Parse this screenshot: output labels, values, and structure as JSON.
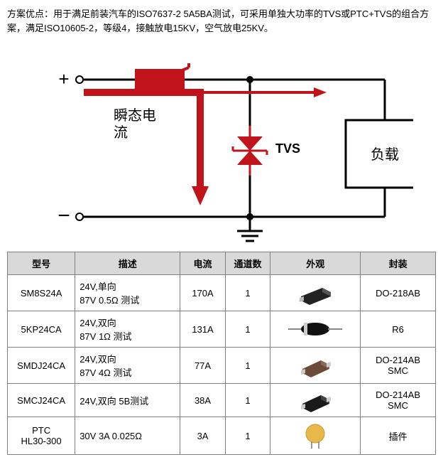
{
  "description": "方案优点：用于满足前装汽车的ISO7637-2 5A5BA测试，可采用单独大功率的TVS或PTC+TVS的组合方案，满足ISO10605-2，等级4，接触放电15KV，空气放电25KV。",
  "diagram": {
    "plus": "+",
    "minus": "−",
    "transient_label": "瞬态电\n流",
    "tvs_label": "TVS",
    "load_label": "负载",
    "line_color": "#000000",
    "red_color": "#c0131a",
    "line_width": 3,
    "red_width": 10
  },
  "table": {
    "headers": [
      "型号",
      "描述",
      "电流",
      "通道数",
      "外观",
      "封装"
    ],
    "col_widths": [
      "90px",
      "140px",
      "60px",
      "60px",
      "120px",
      "100px"
    ],
    "rows": [
      {
        "model": "SM8S24A",
        "desc": "24V,单向\n87V 0.5Ω 测试",
        "current": "170A",
        "channels": "1",
        "appearance": "smd-black-1",
        "package": "DO-218AB"
      },
      {
        "model": "5KP24CA",
        "desc": "24V,双向\n87V 1Ω 测试",
        "current": "131A",
        "channels": "1",
        "appearance": "axial-diode",
        "package": "R6"
      },
      {
        "model": "SMDJ24CA",
        "desc": "24V,双向\n87V 4Ω 测试",
        "current": "77A",
        "channels": "1",
        "appearance": "smd-brown",
        "package": "DO-214AB\nSMC"
      },
      {
        "model": "SMCJ24CA",
        "desc": "24V,双向 5B测试",
        "current": "38A",
        "channels": "1",
        "appearance": "smd-black-2",
        "package": "DO-214AB\nSMC"
      },
      {
        "model": "PTC\nHL30-300",
        "desc": "30V 3A 0.025Ω",
        "current": "3A",
        "channels": "1",
        "appearance": "ptc-disc",
        "package": "插件"
      }
    ]
  }
}
